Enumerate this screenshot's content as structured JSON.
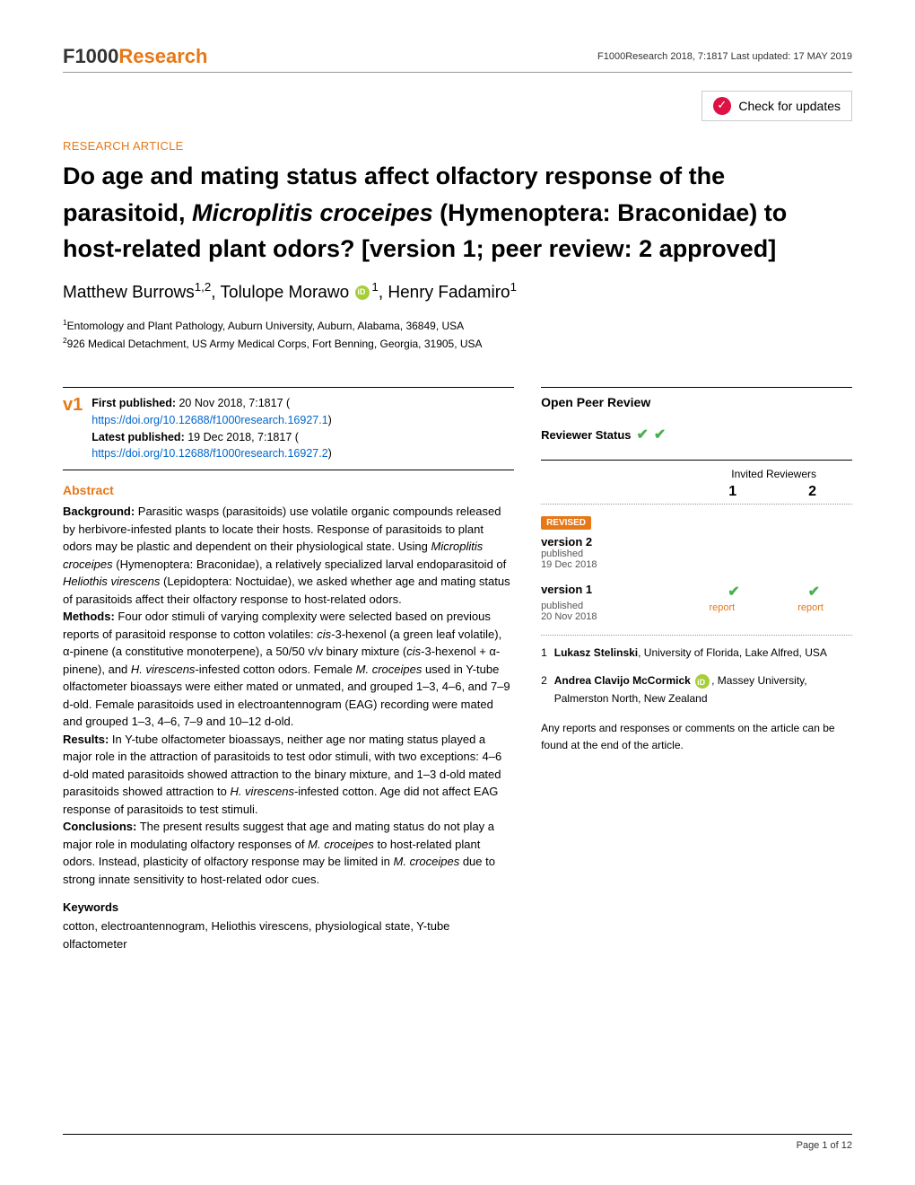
{
  "header": {
    "logo_left": "F1000",
    "logo_right": "Research",
    "citation": "F1000Research 2018, 7:1817 Last updated: 17 MAY 2019",
    "check_updates": "Check for updates"
  },
  "article_type": "RESEARCH ARTICLE",
  "title_parts": {
    "pre": "Do age and mating status affect olfactory response of the parasitoid, ",
    "italic1": "Microplitis croceipes",
    "mid": " (Hymenoptera: Braconidae) to host-related plant odors? ",
    "suffix": "[version 1; peer review: 2 approved]"
  },
  "authors": {
    "a1": "Matthew Burrows",
    "a1_sup": "1,2",
    "a2": "Tolulope Morawo",
    "a2_sup": "1",
    "a3": "Henry Fadamiro",
    "a3_sup": "1"
  },
  "affiliations": {
    "aff1_sup": "1",
    "aff1": "Entomology and Plant Pathology, Auburn University, Auburn, Alabama, 36849, USA",
    "aff2_sup": "2",
    "aff2": "926 Medical Detachment, US Army Medical Corps, Fort Benning, Georgia, 31905, USA"
  },
  "publication": {
    "v1_label": "v1",
    "first_pub_label": "First published:",
    "first_pub": " 20 Nov 2018, 7:1817 (",
    "first_doi": "https://doi.org/10.12688/f1000research.16927.1",
    "close1": ")",
    "latest_pub_label": "Latest published:",
    "latest_pub": " 19 Dec 2018, 7:1817 (",
    "latest_doi": "https://doi.org/10.12688/f1000research.16927.2",
    "close2": ")"
  },
  "abstract": {
    "heading": "Abstract",
    "bg_label": "Background:",
    "bg": " Parasitic wasps (parasitoids) use volatile organic compounds released by herbivore-infested plants to locate their hosts. Response of parasitoids to plant odors may be plastic and dependent on their physiological state. Using ",
    "bg_it1": "Microplitis croceipes",
    "bg2": " (Hymenoptera: Braconidae), a relatively specialized larval endoparasitoid of ",
    "bg_it2": "Heliothis virescens",
    "bg3": " (Lepidoptera: Noctuidae), we asked whether age and mating status of parasitoids affect their olfactory response to host-related odors.",
    "me_label": "Methods:",
    "me": " Four odor stimuli of varying complexity were selected based on previous reports of parasitoid response to cotton volatiles: ",
    "me_it1": "cis",
    "me2": "-3-hexenol (a green leaf volatile), α-pinene (a constitutive monoterpene), a 50/50 v/v binary mixture (",
    "me_it2": "cis",
    "me3": "-3-hexenol + α-pinene), and ",
    "me_it3": "H. virescens",
    "me4": "-infested cotton odors. Female ",
    "me_it4": "M. croceipes",
    "me5": " used in Y-tube olfactometer bioassays were either mated or unmated, and grouped 1–3, 4–6, and 7–9 d-old. Female parasitoids used in electroantennogram (EAG) recording were mated and grouped 1–3, 4–6, 7–9 and 10–12 d-old.",
    "re_label": "Results:",
    "re": " In Y-tube olfactometer bioassays, neither age nor mating status played a major role in the attraction of parasitoids to test odor stimuli, with two exceptions: 4–6 d-old mated parasitoids showed attraction to the binary mixture, and 1–3 d-old mated parasitoids showed attraction to ",
    "re_it1": "H. virescens",
    "re2": "-infested cotton. Age did not affect EAG response of parasitoids to test stimuli.",
    "co_label": "Conclusions:",
    "co": " The present results suggest that age and mating status do not play a major role in modulating olfactory responses of ",
    "co_it1": "M. croceipes",
    "co2": " to host-related plant odors. Instead, plasticity of olfactory response may be limited in ",
    "co_it2": "M. croceipes",
    "co3": " due to strong innate sensitivity to host-related odor cues."
  },
  "keywords": {
    "heading": "Keywords",
    "body": "cotton, electroantennogram, Heliothis virescens, physiological state, Y-tube olfactometer"
  },
  "opr": {
    "heading": "Open Peer Review",
    "status_label": "Reviewer Status",
    "invited_label": "Invited Reviewers",
    "col1": "1",
    "col2": "2",
    "revised_badge": "REVISED",
    "v2_label": "version 2",
    "v2_pub": "published",
    "v2_date": "19 Dec 2018",
    "v1_label": "version 1",
    "v1_pub": "published",
    "v1_date": "20 Nov 2018",
    "report": "report",
    "rev1_num": "1",
    "rev1_name": "Lukasz Stelinski",
    "rev1_aff": ", University of Florida, Lake Alfred, USA",
    "rev2_num": "2",
    "rev2_name": "Andrea Clavijo McCormick",
    "rev2_aff": ", Massey University, Palmerston North, New Zealand",
    "footer": "Any reports and responses or comments on the article can be found at the end of the article."
  },
  "page_num": "Page 1 of 12",
  "colors": {
    "brand_orange": "#e67817",
    "link_blue": "#0066cc",
    "check_green": "#4caf50"
  }
}
